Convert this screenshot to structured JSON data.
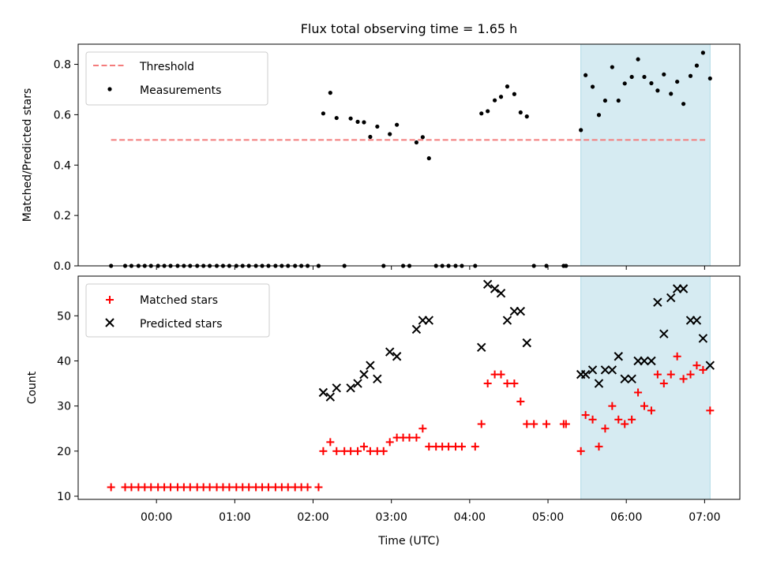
{
  "chart_data": [
    {
      "type": "scatter",
      "title": "Flux total observing time = 1.65 h",
      "xlabel": "",
      "ylabel": "Matched/Predicted stars",
      "xlim_hours": [
        -1.0,
        7.45
      ],
      "ylim": [
        0,
        0.88
      ],
      "yticks": [
        0.0,
        0.2,
        0.4,
        0.6,
        0.8
      ],
      "ytick_labels": [
        "0.0",
        "0.2",
        "0.4",
        "0.6",
        "0.8"
      ],
      "legend_position": "top-left",
      "shaded_region_hours": [
        5.42,
        7.07
      ],
      "threshold": {
        "name": "Threshold",
        "value": 0.5,
        "x_range_hours": [
          -0.58,
          7.03
        ],
        "color": "#f47c7c",
        "style": "dashed"
      },
      "series": [
        {
          "name": "Measurements",
          "marker": "dot",
          "color": "#000000",
          "points": [
            [
              -0.58,
              0.0
            ],
            [
              -0.4,
              0.0
            ],
            [
              -0.32,
              0.0
            ],
            [
              -0.23,
              0.0
            ],
            [
              -0.15,
              0.0
            ],
            [
              -0.07,
              0.0
            ],
            [
              0.02,
              0.0
            ],
            [
              0.1,
              0.0
            ],
            [
              0.18,
              0.0
            ],
            [
              0.27,
              0.0
            ],
            [
              0.35,
              0.0
            ],
            [
              0.43,
              0.0
            ],
            [
              0.52,
              0.0
            ],
            [
              0.6,
              0.0
            ],
            [
              0.68,
              0.0
            ],
            [
              0.77,
              0.0
            ],
            [
              0.85,
              0.0
            ],
            [
              0.93,
              0.0
            ],
            [
              1.02,
              0.0
            ],
            [
              1.1,
              0.0
            ],
            [
              1.18,
              0.0
            ],
            [
              1.27,
              0.0
            ],
            [
              1.35,
              0.0
            ],
            [
              1.43,
              0.0
            ],
            [
              1.52,
              0.0
            ],
            [
              1.6,
              0.0
            ],
            [
              1.68,
              0.0
            ],
            [
              1.77,
              0.0
            ],
            [
              1.85,
              0.0
            ],
            [
              1.93,
              0.0
            ],
            [
              2.07,
              0.0
            ],
            [
              2.13,
              0.605
            ],
            [
              2.22,
              0.687
            ],
            [
              2.3,
              0.587
            ],
            [
              2.4,
              0.0
            ],
            [
              2.48,
              0.585
            ],
            [
              2.57,
              0.572
            ],
            [
              2.65,
              0.57
            ],
            [
              2.73,
              0.512
            ],
            [
              2.82,
              0.553
            ],
            [
              2.9,
              0.0
            ],
            [
              2.98,
              0.523
            ],
            [
              3.07,
              0.56
            ],
            [
              3.15,
              0.0
            ],
            [
              3.23,
              0.0
            ],
            [
              3.32,
              0.49
            ],
            [
              3.4,
              0.511
            ],
            [
              3.48,
              0.427
            ],
            [
              3.57,
              0.0
            ],
            [
              3.65,
              0.0
            ],
            [
              3.73,
              0.0
            ],
            [
              3.82,
              0.0
            ],
            [
              3.9,
              0.0
            ],
            [
              4.07,
              0.0
            ],
            [
              4.15,
              0.605
            ],
            [
              4.23,
              0.614
            ],
            [
              4.32,
              0.657
            ],
            [
              4.4,
              0.671
            ],
            [
              4.48,
              0.712
            ],
            [
              4.57,
              0.682
            ],
            [
              4.65,
              0.609
            ],
            [
              4.73,
              0.593
            ],
            [
              4.82,
              0.0
            ],
            [
              4.98,
              0.0
            ],
            [
              5.2,
              0.0
            ],
            [
              5.23,
              0.0
            ],
            [
              5.42,
              0.539
            ],
            [
              5.48,
              0.757
            ],
            [
              5.57,
              0.711
            ],
            [
              5.65,
              0.599
            ],
            [
              5.73,
              0.656
            ],
            [
              5.82,
              0.789
            ],
            [
              5.9,
              0.656
            ],
            [
              5.98,
              0.724
            ],
            [
              6.07,
              0.75
            ],
            [
              6.15,
              0.82
            ],
            [
              6.23,
              0.75
            ],
            [
              6.32,
              0.725
            ],
            [
              6.4,
              0.696
            ],
            [
              6.48,
              0.76
            ],
            [
              6.57,
              0.683
            ],
            [
              6.65,
              0.731
            ],
            [
              6.73,
              0.643
            ],
            [
              6.82,
              0.754
            ],
            [
              6.9,
              0.795
            ],
            [
              6.98,
              0.846
            ],
            [
              7.07,
              0.744
            ]
          ]
        }
      ]
    },
    {
      "type": "scatter",
      "title": "",
      "xlabel": "Time (UTC)",
      "ylabel": "Count",
      "xlim_hours": [
        -1.0,
        7.45
      ],
      "ylim": [
        9.3,
        58.8
      ],
      "yticks": [
        10,
        20,
        30,
        40,
        50
      ],
      "ytick_labels": [
        "10",
        "20",
        "30",
        "40",
        "50"
      ],
      "xticks_hours": [
        0,
        1,
        2,
        3,
        4,
        5,
        6,
        7
      ],
      "xtick_labels": [
        "00:00",
        "01:00",
        "02:00",
        "03:00",
        "04:00",
        "05:00",
        "06:00",
        "07:00"
      ],
      "legend_position": "top-left",
      "shaded_region_hours": [
        5.42,
        7.07
      ],
      "series": [
        {
          "name": "Matched stars",
          "marker": "plus",
          "color": "#ff0000",
          "points": [
            [
              -0.58,
              12
            ],
            [
              -0.4,
              12
            ],
            [
              -0.32,
              12
            ],
            [
              -0.23,
              12
            ],
            [
              -0.15,
              12
            ],
            [
              -0.07,
              12
            ],
            [
              0.02,
              12
            ],
            [
              0.1,
              12
            ],
            [
              0.18,
              12
            ],
            [
              0.27,
              12
            ],
            [
              0.35,
              12
            ],
            [
              0.43,
              12
            ],
            [
              0.52,
              12
            ],
            [
              0.6,
              12
            ],
            [
              0.68,
              12
            ],
            [
              0.77,
              12
            ],
            [
              0.85,
              12
            ],
            [
              0.93,
              12
            ],
            [
              1.02,
              12
            ],
            [
              1.1,
              12
            ],
            [
              1.18,
              12
            ],
            [
              1.27,
              12
            ],
            [
              1.35,
              12
            ],
            [
              1.43,
              12
            ],
            [
              1.52,
              12
            ],
            [
              1.6,
              12
            ],
            [
              1.68,
              12
            ],
            [
              1.77,
              12
            ],
            [
              1.85,
              12
            ],
            [
              1.93,
              12
            ],
            [
              2.07,
              12
            ],
            [
              2.13,
              20
            ],
            [
              2.22,
              22
            ],
            [
              2.3,
              20
            ],
            [
              2.4,
              20
            ],
            [
              2.48,
              20
            ],
            [
              2.57,
              20
            ],
            [
              2.65,
              21
            ],
            [
              2.73,
              20
            ],
            [
              2.82,
              20
            ],
            [
              2.9,
              20
            ],
            [
              2.98,
              22
            ],
            [
              3.07,
              23
            ],
            [
              3.15,
              23
            ],
            [
              3.23,
              23
            ],
            [
              3.32,
              23
            ],
            [
              3.4,
              25
            ],
            [
              3.48,
              21
            ],
            [
              3.57,
              21
            ],
            [
              3.65,
              21
            ],
            [
              3.73,
              21
            ],
            [
              3.82,
              21
            ],
            [
              3.9,
              21
            ],
            [
              4.07,
              21
            ],
            [
              4.15,
              26
            ],
            [
              4.23,
              35
            ],
            [
              4.32,
              37
            ],
            [
              4.4,
              37
            ],
            [
              4.48,
              35
            ],
            [
              4.57,
              35
            ],
            [
              4.65,
              31
            ],
            [
              4.73,
              26
            ],
            [
              4.82,
              26
            ],
            [
              4.98,
              26
            ],
            [
              5.2,
              26
            ],
            [
              5.23,
              26
            ],
            [
              5.42,
              20
            ],
            [
              5.48,
              28
            ],
            [
              5.57,
              27
            ],
            [
              5.65,
              21
            ],
            [
              5.73,
              25
            ],
            [
              5.82,
              30
            ],
            [
              5.9,
              27
            ],
            [
              5.98,
              26
            ],
            [
              6.07,
              27
            ],
            [
              6.15,
              33
            ],
            [
              6.23,
              30
            ],
            [
              6.32,
              29
            ],
            [
              6.4,
              37
            ],
            [
              6.48,
              35
            ],
            [
              6.57,
              37
            ],
            [
              6.65,
              41
            ],
            [
              6.73,
              36
            ],
            [
              6.82,
              37
            ],
            [
              6.9,
              39
            ],
            [
              6.98,
              38
            ],
            [
              7.07,
              29
            ]
          ]
        },
        {
          "name": "Predicted stars",
          "marker": "x",
          "color": "#000000",
          "points": [
            [
              2.13,
              33
            ],
            [
              2.22,
              32
            ],
            [
              2.3,
              34
            ],
            [
              2.48,
              34
            ],
            [
              2.57,
              35
            ],
            [
              2.65,
              37
            ],
            [
              2.73,
              39
            ],
            [
              2.82,
              36
            ],
            [
              2.98,
              42
            ],
            [
              3.07,
              41
            ],
            [
              3.32,
              47
            ],
            [
              3.4,
              49
            ],
            [
              3.48,
              49
            ],
            [
              4.15,
              43
            ],
            [
              4.23,
              57
            ],
            [
              4.32,
              56
            ],
            [
              4.4,
              55
            ],
            [
              4.48,
              49
            ],
            [
              4.57,
              51
            ],
            [
              4.65,
              51
            ],
            [
              4.73,
              44
            ],
            [
              5.42,
              37
            ],
            [
              5.48,
              37
            ],
            [
              5.57,
              38
            ],
            [
              5.65,
              35
            ],
            [
              5.73,
              38
            ],
            [
              5.82,
              38
            ],
            [
              5.9,
              41
            ],
            [
              5.98,
              36
            ],
            [
              6.07,
              36
            ],
            [
              6.15,
              40
            ],
            [
              6.23,
              40
            ],
            [
              6.32,
              40
            ],
            [
              6.4,
              53
            ],
            [
              6.48,
              46
            ],
            [
              6.57,
              54
            ],
            [
              6.65,
              56
            ],
            [
              6.73,
              56
            ],
            [
              6.82,
              49
            ],
            [
              6.9,
              49
            ],
            [
              6.98,
              45
            ],
            [
              7.07,
              39
            ]
          ]
        }
      ]
    }
  ],
  "colors": {
    "shade": "#add8e6",
    "threshold": "#f47c7c",
    "matched": "#ff0000",
    "predicted": "#000000",
    "measurement": "#000000"
  }
}
